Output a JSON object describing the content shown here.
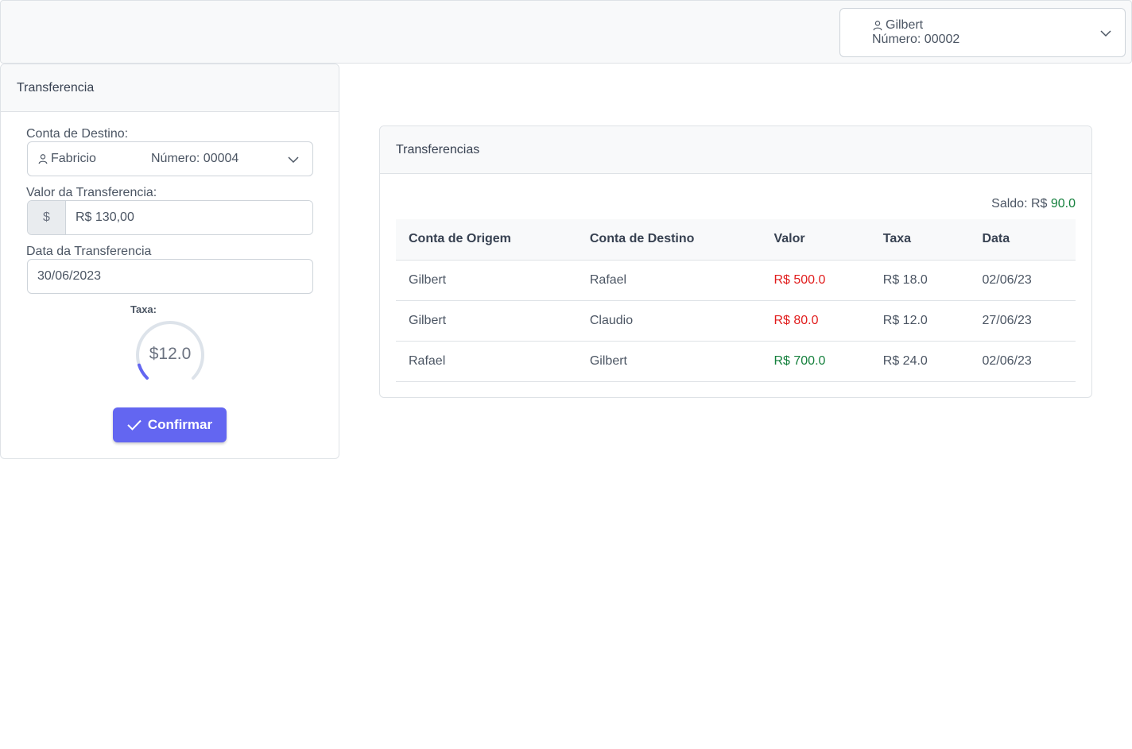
{
  "header": {
    "account": {
      "name": "Gilbert",
      "number_label": "Número: 00002"
    }
  },
  "transfer_form": {
    "title": "Transferencia",
    "destination_label": "Conta de Destino:",
    "destination": {
      "name": "Fabricio",
      "number_label": "Número: 00004"
    },
    "amount_label": "Valor da Transferencia:",
    "amount_prefix": "$",
    "amount_value": "R$ 130,00",
    "date_label": "Data da Transferencia",
    "date_value": "30/06/2023",
    "fee_label": "Taxa:",
    "fee_display": "$12.0",
    "fee_knob_fraction": 0.1,
    "confirm_label": "Confirmar"
  },
  "transfers": {
    "title": "Transferencias",
    "balance_label": "Saldo: R$",
    "balance_value": "90.0",
    "columns": [
      "Conta de Origem",
      "Conta de Destino",
      "Valor",
      "Taxa",
      "Data"
    ],
    "rows": [
      {
        "origem": "Gilbert",
        "destino": "Rafael",
        "valor": "R$ 500.0",
        "taxa": "R$ 18.0",
        "data": "02/06/23",
        "tipo": "debit"
      },
      {
        "origem": "Gilbert",
        "destino": "Claudio",
        "valor": "R$ 80.0",
        "taxa": "R$ 12.0",
        "data": "27/06/23",
        "tipo": "debit"
      },
      {
        "origem": "Rafael",
        "destino": "Gilbert",
        "valor": "R$ 700.0",
        "taxa": "R$ 24.0",
        "data": "02/06/23",
        "tipo": "credit"
      }
    ]
  },
  "colors": {
    "accent": "#6366f1",
    "debit": "#e11d1d",
    "credit": "#15803d"
  }
}
